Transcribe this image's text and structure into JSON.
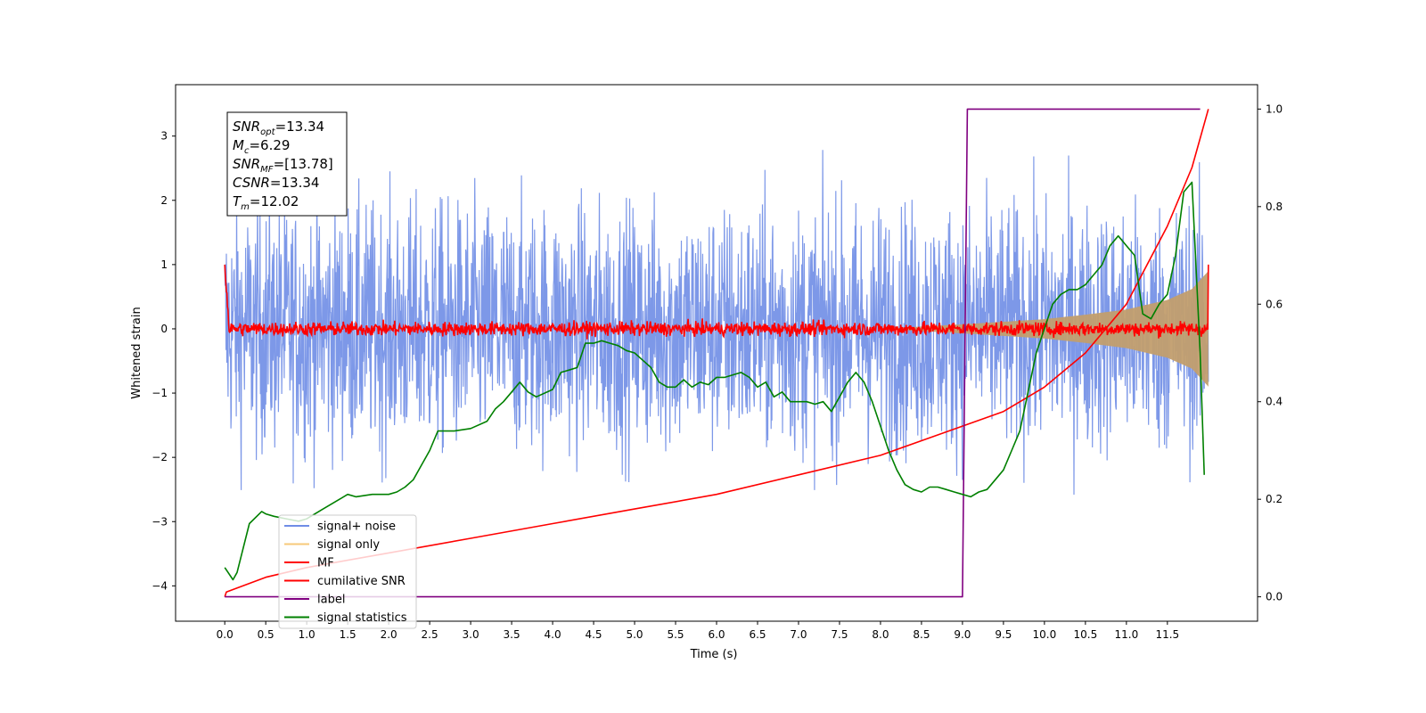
{
  "chart_data": {
    "type": "line",
    "xlabel": "Time (s)",
    "ylabel": "Whitened strain",
    "xlim": [
      -0.6,
      12.6
    ],
    "ylim": [
      -4.55,
      3.8
    ],
    "y2lim": [
      -0.05,
      1.05
    ],
    "x_ticks": [
      0.0,
      0.5,
      1.0,
      1.5,
      2.0,
      2.5,
      3.0,
      3.5,
      4.0,
      4.5,
      5.0,
      5.5,
      6.0,
      6.5,
      7.0,
      7.5,
      8.0,
      8.5,
      9.0,
      9.5,
      10.0,
      10.5,
      11.0,
      11.5
    ],
    "x_tick_labels": [
      "0.0",
      "0.5",
      "1.0",
      "1.5",
      "2.0",
      "2.5",
      "3.0",
      "3.5",
      "4.0",
      "4.5",
      "5.0",
      "5.5",
      "6.0",
      "6.5",
      "7.0",
      "7.5",
      "8.0",
      "8.5",
      "9.0",
      "9.5",
      "10.0",
      "10.5",
      "11.0",
      "11.5"
    ],
    "y_ticks": [
      3,
      2,
      1,
      0,
      -1,
      -2,
      -3,
      -4
    ],
    "y_tick_labels": [
      "3",
      "2",
      "1",
      "0",
      "−1",
      "−2",
      "−3",
      "−4"
    ],
    "y2_ticks": [
      1.0,
      0.8,
      0.6,
      0.4,
      0.2,
      0.0
    ],
    "y2_tick_labels": [
      "1.0",
      "0.8",
      "0.6",
      "0.4",
      "0.2",
      "0.0"
    ],
    "grid": false,
    "legend_position": "lower-left",
    "annotation_lines": [
      {
        "base": "SNR",
        "sub": "opt",
        "value": "=13.34"
      },
      {
        "base": "M",
        "sub": "c",
        "value": "=6.29"
      },
      {
        "base": "SNR",
        "sub": "MF",
        "value": "=[13.78]"
      },
      {
        "base": "CSNR",
        "sub": "",
        "value": "=13.34"
      },
      {
        "base": "T",
        "sub": "m",
        "value": "=12.02"
      }
    ],
    "series": [
      {
        "name": "signal+ noise",
        "color": "#6f8de6",
        "axis": "left",
        "noise_sigma": 1.0,
        "x_range": [
          0.0,
          12.0
        ]
      },
      {
        "name": "signal only",
        "color": "#f7c97a",
        "axis": "left",
        "envelope_x": [
          8.0,
          9.0,
          10.0,
          10.5,
          11.0,
          11.5,
          11.8,
          12.0
        ],
        "envelope_amp": [
          0.0,
          0.07,
          0.15,
          0.22,
          0.3,
          0.45,
          0.62,
          0.9
        ]
      },
      {
        "name": "MF",
        "color": "#ff0000",
        "axis": "left",
        "noise_sigma": 0.06,
        "start_value": 1.0,
        "end_value": 1.0
      },
      {
        "name": "cumilative SNR",
        "color": "#ff0000",
        "axis": "right",
        "x": [
          0.0,
          0.02,
          0.5,
          1.0,
          2.0,
          3.0,
          4.0,
          5.0,
          6.0,
          7.0,
          8.0,
          8.5,
          9.0,
          9.5,
          10.0,
          10.5,
          11.0,
          11.5,
          11.8,
          12.0
        ],
        "y": [
          0.0,
          0.01,
          0.04,
          0.06,
          0.09,
          0.12,
          0.15,
          0.18,
          0.21,
          0.25,
          0.29,
          0.32,
          0.35,
          0.38,
          0.43,
          0.5,
          0.6,
          0.76,
          0.88,
          1.0
        ]
      },
      {
        "name": "label",
        "color": "#800080",
        "axis": "right",
        "x": [
          0.0,
          9.0,
          9.06,
          11.9
        ],
        "y": [
          0.0,
          0.0,
          1.0,
          1.0
        ]
      },
      {
        "name": "signal statistics",
        "color": "#008000",
        "axis": "right",
        "x": [
          0.0,
          0.1,
          0.15,
          0.3,
          0.45,
          0.5,
          0.6,
          0.75,
          0.9,
          1.0,
          1.2,
          1.4,
          1.5,
          1.6,
          1.8,
          2.0,
          2.1,
          2.2,
          2.3,
          2.4,
          2.5,
          2.6,
          2.8,
          3.0,
          3.2,
          3.3,
          3.4,
          3.5,
          3.6,
          3.7,
          3.8,
          4.0,
          4.1,
          4.2,
          4.3,
          4.4,
          4.5,
          4.6,
          4.7,
          4.8,
          4.9,
          5.0,
          5.1,
          5.2,
          5.3,
          5.4,
          5.5,
          5.6,
          5.7,
          5.8,
          5.9,
          6.0,
          6.1,
          6.2,
          6.3,
          6.4,
          6.5,
          6.6,
          6.7,
          6.8,
          6.9,
          7.0,
          7.1,
          7.2,
          7.3,
          7.4,
          7.5,
          7.6,
          7.7,
          7.8,
          7.9,
          8.0,
          8.1,
          8.2,
          8.3,
          8.4,
          8.5,
          8.6,
          8.7,
          8.8,
          8.9,
          9.0,
          9.1,
          9.2,
          9.3,
          9.4,
          9.5,
          9.6,
          9.7,
          9.8,
          9.9,
          10.0,
          10.1,
          10.2,
          10.3,
          10.4,
          10.5,
          10.6,
          10.7,
          10.8,
          10.9,
          11.0,
          11.1,
          11.2,
          11.3,
          11.4,
          11.5,
          11.6,
          11.7,
          11.8,
          11.9,
          11.95
        ],
        "y": [
          0.06,
          0.035,
          0.05,
          0.15,
          0.175,
          0.17,
          0.165,
          0.16,
          0.155,
          0.16,
          0.18,
          0.2,
          0.21,
          0.205,
          0.21,
          0.21,
          0.215,
          0.225,
          0.24,
          0.27,
          0.3,
          0.34,
          0.34,
          0.345,
          0.36,
          0.385,
          0.4,
          0.42,
          0.44,
          0.42,
          0.41,
          0.425,
          0.46,
          0.465,
          0.47,
          0.52,
          0.52,
          0.525,
          0.52,
          0.515,
          0.505,
          0.5,
          0.485,
          0.47,
          0.44,
          0.43,
          0.43,
          0.445,
          0.43,
          0.44,
          0.435,
          0.45,
          0.45,
          0.455,
          0.46,
          0.45,
          0.43,
          0.44,
          0.41,
          0.42,
          0.4,
          0.4,
          0.4,
          0.395,
          0.4,
          0.38,
          0.41,
          0.44,
          0.46,
          0.44,
          0.4,
          0.35,
          0.3,
          0.26,
          0.23,
          0.22,
          0.215,
          0.225,
          0.225,
          0.22,
          0.215,
          0.21,
          0.205,
          0.215,
          0.22,
          0.24,
          0.26,
          0.3,
          0.34,
          0.42,
          0.5,
          0.55,
          0.6,
          0.62,
          0.63,
          0.63,
          0.64,
          0.66,
          0.68,
          0.72,
          0.74,
          0.72,
          0.7,
          0.58,
          0.57,
          0.6,
          0.62,
          0.7,
          0.83,
          0.85,
          0.5,
          0.25
        ]
      }
    ]
  }
}
